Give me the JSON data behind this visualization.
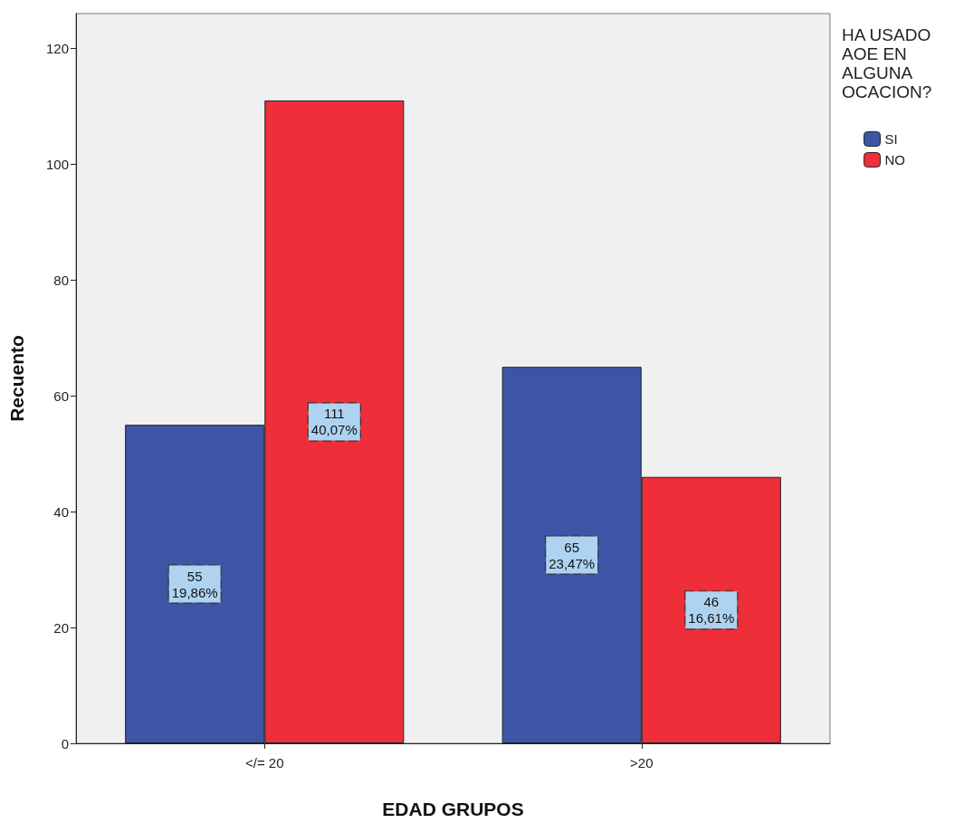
{
  "chart_data": {
    "type": "bar",
    "xlabel": "EDAD GRUPOS",
    "ylabel": "Recuento",
    "legend_title": "HA USADO AOE EN ALGUNA OCACION?",
    "categories": [
      "</= 20",
      ">20"
    ],
    "series": [
      {
        "name": "SI",
        "color": "#3e55a5",
        "values": [
          55,
          65
        ],
        "value_labels": [
          "55\n19,86%",
          "65\n23,47%"
        ]
      },
      {
        "name": "NO",
        "color": "#ee2e38",
        "values": [
          111,
          46
        ],
        "value_labels": [
          "111\n40,07%",
          "46\n16,61%"
        ]
      }
    ],
    "ylim": [
      0,
      126
    ],
    "yticks": [
      0,
      20,
      40,
      60,
      80,
      100,
      120
    ],
    "grid": false,
    "legend": "top right"
  }
}
